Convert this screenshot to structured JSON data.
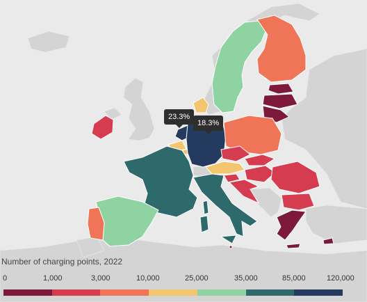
{
  "legend": {
    "title": "Number of charging points, 2022",
    "ticks": [
      "0",
      "1,000",
      "3,000",
      "10,000",
      "25,000",
      "35,000",
      "85,000",
      "120,000"
    ],
    "bins": [
      {
        "range": "0–1,000",
        "color": "#7d1a3c"
      },
      {
        "range": "1,000–3,000",
        "color": "#d63c4f"
      },
      {
        "range": "3,000–10,000",
        "color": "#ef7458"
      },
      {
        "range": "10,000–25,000",
        "color": "#f3c56e"
      },
      {
        "range": "25,000–35,000",
        "color": "#8fd3a2"
      },
      {
        "range": "35,000–85,000",
        "color": "#2e6a6b"
      },
      {
        "range": "85,000–120,000",
        "color": "#243b5f"
      }
    ]
  },
  "tooltips": [
    {
      "label": "23.3%",
      "country": "Netherlands"
    },
    {
      "label": "18.3%",
      "country": "Germany"
    }
  ],
  "countries": [
    {
      "name": "Netherlands",
      "bin": 6,
      "color": "#243b5f"
    },
    {
      "name": "Germany",
      "bin": 6,
      "color": "#243b5f"
    },
    {
      "name": "France",
      "bin": 5,
      "color": "#2e6a6b"
    },
    {
      "name": "Italy",
      "bin": 5,
      "color": "#2e6a6b"
    },
    {
      "name": "Sweden",
      "bin": 4,
      "color": "#8fd3a2"
    },
    {
      "name": "Spain",
      "bin": 4,
      "color": "#8fd3a2"
    },
    {
      "name": "Belgium",
      "bin": 3,
      "color": "#f3c56e"
    },
    {
      "name": "Austria",
      "bin": 3,
      "color": "#f3c56e"
    },
    {
      "name": "Denmark",
      "bin": 3,
      "color": "#f3c56e"
    },
    {
      "name": "Finland",
      "bin": 2,
      "color": "#ef7458"
    },
    {
      "name": "Poland",
      "bin": 2,
      "color": "#ef7458"
    },
    {
      "name": "Portugal",
      "bin": 2,
      "color": "#ef7458"
    },
    {
      "name": "Ireland",
      "bin": 1,
      "color": "#d63c4f"
    },
    {
      "name": "Czechia",
      "bin": 1,
      "color": "#d63c4f"
    },
    {
      "name": "Slovakia",
      "bin": 1,
      "color": "#d63c4f"
    },
    {
      "name": "Hungary",
      "bin": 1,
      "color": "#d63c4f"
    },
    {
      "name": "Slovenia",
      "bin": 1,
      "color": "#d63c4f"
    },
    {
      "name": "Croatia",
      "bin": 1,
      "color": "#d63c4f"
    },
    {
      "name": "Romania",
      "bin": 1,
      "color": "#d63c4f"
    },
    {
      "name": "Bulgaria",
      "bin": 1,
      "color": "#d63c4f"
    },
    {
      "name": "Luxembourg",
      "bin": 3,
      "color": "#f3c56e"
    },
    {
      "name": "Latvia",
      "bin": 0,
      "color": "#7d1a3c"
    },
    {
      "name": "Lithuania",
      "bin": 0,
      "color": "#7d1a3c"
    },
    {
      "name": "Estonia",
      "bin": 0,
      "color": "#7d1a3c"
    },
    {
      "name": "Greece",
      "bin": 0,
      "color": "#7d1a3c"
    },
    {
      "name": "Cyprus",
      "bin": 0,
      "color": "#7d1a3c"
    },
    {
      "name": "Malta",
      "bin": 0,
      "color": "#7d1a3c"
    }
  ]
}
